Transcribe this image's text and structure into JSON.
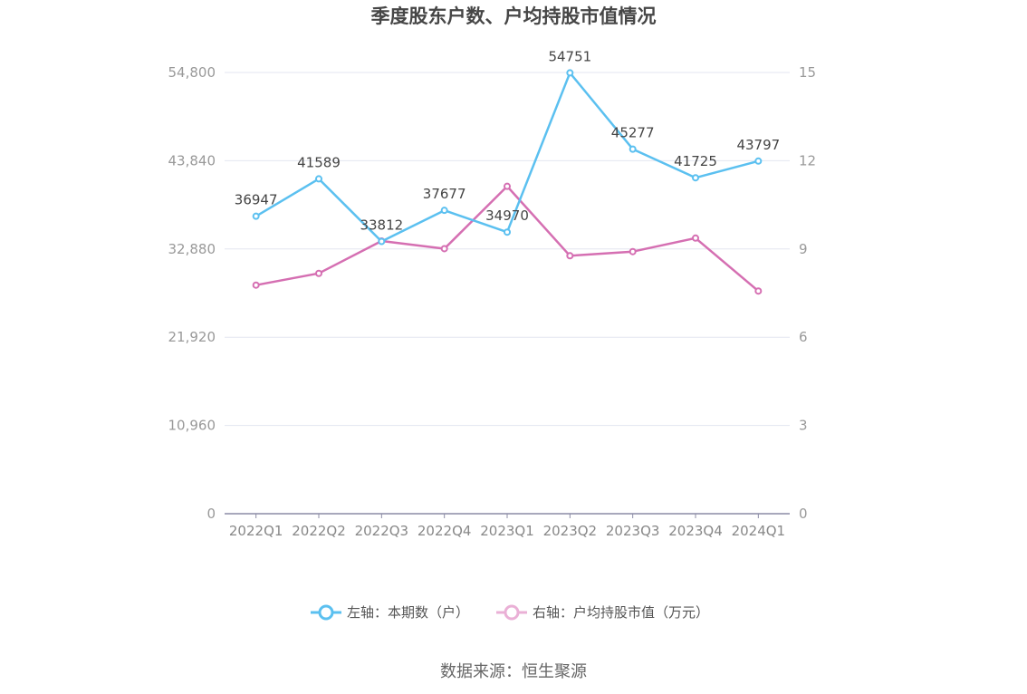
{
  "chart_data": {
    "type": "line",
    "title": "季度股东户数、户均持股市值情况",
    "categories": [
      "2022Q1",
      "2022Q2",
      "2022Q3",
      "2022Q4",
      "2023Q1",
      "2023Q2",
      "2023Q3",
      "2023Q4",
      "2024Q1"
    ],
    "y_left": {
      "ticks": [
        "0",
        "10,960",
        "21,920",
        "32,880",
        "43,840",
        "54,800"
      ],
      "range": [
        0,
        54800
      ]
    },
    "y_right": {
      "ticks": [
        "0",
        "3",
        "6",
        "9",
        "12",
        "15"
      ],
      "range": [
        0,
        15
      ]
    },
    "grid": true,
    "legend_position": "bottom",
    "series": [
      {
        "name": "左轴：本期数（户）",
        "axis": "left",
        "color": "#5bc0f0",
        "values": [
          36947,
          41589,
          33812,
          37677,
          34970,
          54751,
          45277,
          41725,
          43797
        ],
        "labels": [
          "36947",
          "41589",
          "33812",
          "37677",
          "34970",
          "54751",
          "45277",
          "41725",
          "43797"
        ]
      },
      {
        "name": "右轴：户均持股市值（万元）",
        "axis": "right",
        "color": "#d56fb2",
        "legend_color": "#eab0d6",
        "values": [
          7.77,
          8.17,
          9.27,
          9.01,
          11.13,
          8.77,
          8.91,
          9.37,
          7.57
        ]
      }
    ],
    "source": "数据来源：恒生聚源"
  }
}
